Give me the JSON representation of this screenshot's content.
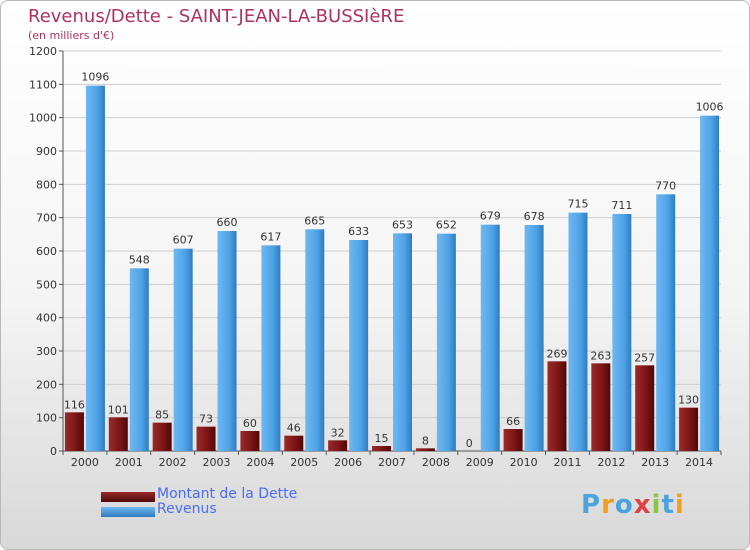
{
  "header": {
    "title": "Revenus/Dette - SAINT-JEAN-LA-BUSSIèRE",
    "subtitle": "(en milliers d'€)"
  },
  "chart_data": {
    "type": "bar",
    "title": "Revenus/Dette - SAINT-JEAN-LA-BUSSIèRE",
    "subtitle": "(en milliers d'€)",
    "xlabel": "",
    "ylabel": "",
    "ylim": [
      0,
      1200
    ],
    "yticks": [
      0,
      100,
      200,
      300,
      400,
      500,
      600,
      700,
      800,
      900,
      1000,
      1100,
      1200
    ],
    "grid": true,
    "legend_position": "bottom-left",
    "categories": [
      "2000",
      "2001",
      "2002",
      "2003",
      "2004",
      "2005",
      "2006",
      "2007",
      "2008",
      "2009",
      "2010",
      "2011",
      "2012",
      "2013",
      "2014"
    ],
    "series": [
      {
        "name": "Montant de la Dette",
        "color": "#7a1414",
        "values": [
          116,
          101,
          85,
          73,
          60,
          46,
          32,
          15,
          8,
          0,
          66,
          269,
          263,
          257,
          130
        ]
      },
      {
        "name": "Revenus",
        "color": "#4ea3e6",
        "values": [
          1096,
          548,
          607,
          660,
          617,
          665,
          633,
          653,
          652,
          679,
          678,
          715,
          711,
          770,
          1006
        ]
      }
    ]
  },
  "legend": [
    {
      "label": "Montant de la Dette",
      "color": "#7a1414"
    },
    {
      "label": "Revenus",
      "color": "#4ea3e6"
    }
  ],
  "logo": {
    "text": "Proxiti"
  }
}
